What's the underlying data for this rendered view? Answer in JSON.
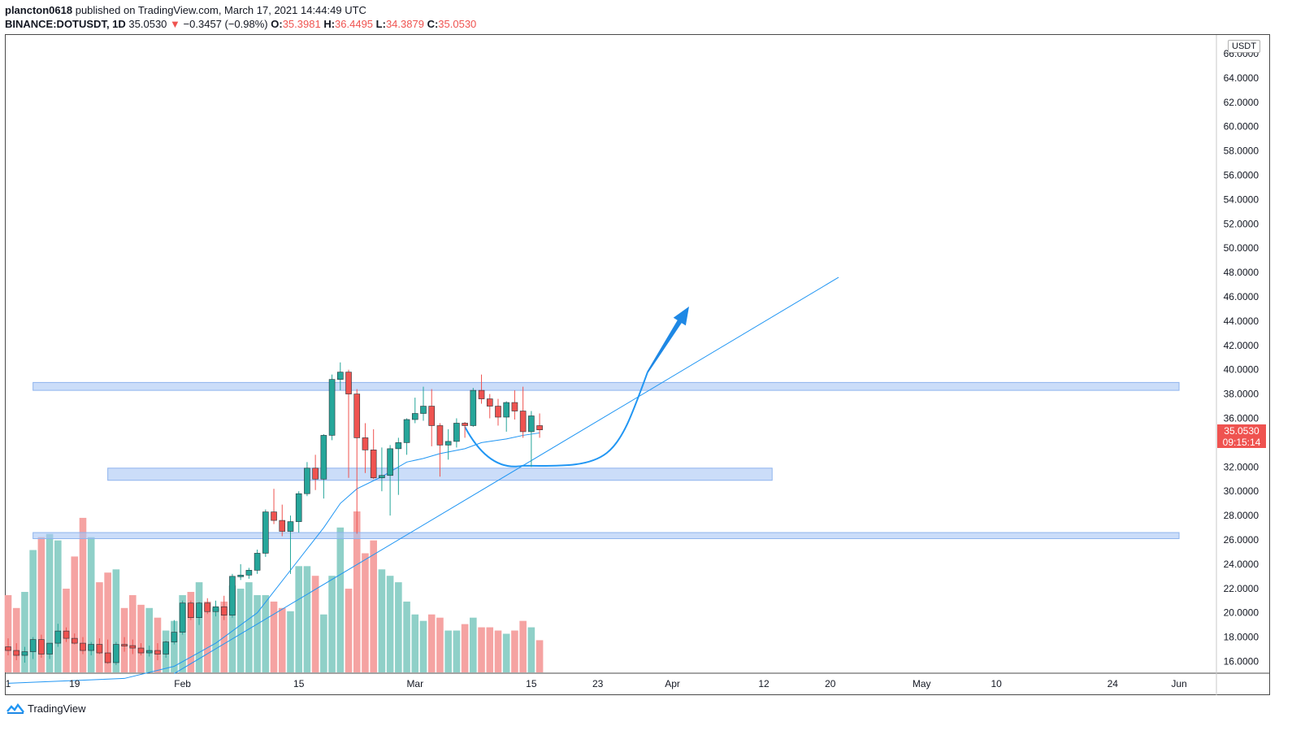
{
  "header": {
    "author": "plancton0618",
    "published_text": "published on TradingView.com, March 17, 2021 14:44:49 UTC",
    "symbol": "BINANCE:DOTUSDT, 1D",
    "last": "35.0530",
    "change_arrow": "▼",
    "change": "−0.3457 (−0.98%)",
    "o_label": "O:",
    "o": "35.3981",
    "h_label": "H:",
    "h": "36.4495",
    "l_label": "L:",
    "l": "34.3879",
    "c_label": "C:",
    "c": "35.0530"
  },
  "currency": "USDT",
  "price_tag": {
    "value": "35.0530",
    "countdown": "09:15:14"
  },
  "footer": {
    "brand": "TradingView"
  },
  "colors": {
    "up": "#26a69a",
    "down": "#ef5350",
    "zone": "#a9c6f5",
    "trend": "#2196f3"
  },
  "chart_data": {
    "type": "candlestick",
    "title": "BINANCE:DOTUSDT, 1D",
    "ylim": [
      15,
      67
    ],
    "y_ticks": [
      "16.0000",
      "18.0000",
      "20.0000",
      "22.0000",
      "24.0000",
      "26.0000",
      "28.0000",
      "30.0000",
      "32.0000",
      "34.0000",
      "36.0000",
      "38.0000",
      "40.0000",
      "42.0000",
      "44.0000",
      "46.0000",
      "48.0000",
      "50.0000",
      "52.0000",
      "54.0000",
      "56.0000",
      "58.0000",
      "60.0000",
      "62.0000",
      "64.0000",
      "66.0000"
    ],
    "x_ticks": [
      {
        "label": "1",
        "day": 0
      },
      {
        "label": "19",
        "day": 8
      },
      {
        "label": "Feb",
        "day": 21
      },
      {
        "label": "15",
        "day": 35
      },
      {
        "label": "Mar",
        "day": 49
      },
      {
        "label": "15",
        "day": 63
      },
      {
        "label": "23",
        "day": 71
      },
      {
        "label": "Apr",
        "day": 80
      },
      {
        "label": "12",
        "day": 91
      },
      {
        "label": "20",
        "day": 99
      },
      {
        "label": "May",
        "day": 110
      },
      {
        "label": "10",
        "day": 119
      },
      {
        "label": "24",
        "day": 133
      },
      {
        "label": "Jun",
        "day": 141
      }
    ],
    "candles": [
      {
        "o": 17.2,
        "h": 17.9,
        "l": 16.5,
        "c": 16.9
      },
      {
        "o": 16.9,
        "h": 17.5,
        "l": 16.1,
        "c": 16.5
      },
      {
        "o": 16.5,
        "h": 17.2,
        "l": 15.9,
        "c": 16.8
      },
      {
        "o": 16.8,
        "h": 18.0,
        "l": 16.2,
        "c": 17.8
      },
      {
        "o": 17.8,
        "h": 18.2,
        "l": 16.3,
        "c": 16.6
      },
      {
        "o": 16.6,
        "h": 17.3,
        "l": 16.2,
        "c": 17.5
      },
      {
        "o": 17.5,
        "h": 19.1,
        "l": 17.2,
        "c": 18.5
      },
      {
        "o": 18.5,
        "h": 18.8,
        "l": 17.6,
        "c": 17.9
      },
      {
        "o": 17.9,
        "h": 18.3,
        "l": 17.4,
        "c": 17.5
      },
      {
        "o": 17.5,
        "h": 18.0,
        "l": 16.6,
        "c": 16.9
      },
      {
        "o": 16.9,
        "h": 17.6,
        "l": 16.5,
        "c": 17.4
      },
      {
        "o": 17.4,
        "h": 17.9,
        "l": 16.6,
        "c": 16.7
      },
      {
        "o": 16.7,
        "h": 17.8,
        "l": 15.8,
        "c": 15.9
      },
      {
        "o": 15.9,
        "h": 17.6,
        "l": 15.7,
        "c": 17.4
      },
      {
        "o": 17.4,
        "h": 18.0,
        "l": 16.8,
        "c": 17.3
      },
      {
        "o": 17.3,
        "h": 17.8,
        "l": 16.6,
        "c": 17.1
      },
      {
        "o": 17.1,
        "h": 17.5,
        "l": 16.5,
        "c": 16.7
      },
      {
        "o": 16.7,
        "h": 17.3,
        "l": 16.4,
        "c": 16.9
      },
      {
        "o": 16.9,
        "h": 17.5,
        "l": 16.1,
        "c": 16.6
      },
      {
        "o": 16.6,
        "h": 17.7,
        "l": 16.3,
        "c": 17.6
      },
      {
        "o": 17.6,
        "h": 19.4,
        "l": 17.4,
        "c": 18.4
      },
      {
        "o": 18.4,
        "h": 21.0,
        "l": 18.2,
        "c": 20.8
      },
      {
        "o": 20.8,
        "h": 21.0,
        "l": 19.4,
        "c": 19.6
      },
      {
        "o": 19.6,
        "h": 20.9,
        "l": 19.0,
        "c": 20.8
      },
      {
        "o": 20.8,
        "h": 21.2,
        "l": 19.9,
        "c": 20.1
      },
      {
        "o": 20.1,
        "h": 21.0,
        "l": 19.7,
        "c": 20.5
      },
      {
        "o": 20.5,
        "h": 21.4,
        "l": 19.4,
        "c": 19.8
      },
      {
        "o": 19.8,
        "h": 23.2,
        "l": 19.6,
        "c": 23.0
      },
      {
        "o": 23.0,
        "h": 24.0,
        "l": 22.7,
        "c": 23.1
      },
      {
        "o": 23.1,
        "h": 23.7,
        "l": 22.8,
        "c": 23.5
      },
      {
        "o": 23.5,
        "h": 25.2,
        "l": 23.2,
        "c": 24.9
      },
      {
        "o": 24.9,
        "h": 28.5,
        "l": 24.6,
        "c": 28.3
      },
      {
        "o": 28.3,
        "h": 30.2,
        "l": 27.3,
        "c": 27.6
      },
      {
        "o": 27.6,
        "h": 28.9,
        "l": 26.3,
        "c": 26.7
      },
      {
        "o": 26.7,
        "h": 28.0,
        "l": 23.2,
        "c": 27.5
      },
      {
        "o": 27.5,
        "h": 30.0,
        "l": 26.6,
        "c": 29.8
      },
      {
        "o": 29.8,
        "h": 32.4,
        "l": 29.6,
        "c": 31.9
      },
      {
        "o": 31.9,
        "h": 33.0,
        "l": 30.1,
        "c": 31.0
      },
      {
        "o": 31.0,
        "h": 34.7,
        "l": 29.4,
        "c": 34.6
      },
      {
        "o": 34.6,
        "h": 39.6,
        "l": 34.2,
        "c": 39.2
      },
      {
        "o": 39.2,
        "h": 40.6,
        "l": 38.3,
        "c": 39.8
      },
      {
        "o": 39.8,
        "h": 40.0,
        "l": 31.1,
        "c": 38.0
      },
      {
        "o": 38.0,
        "h": 38.4,
        "l": 26.5,
        "c": 34.4
      },
      {
        "o": 34.4,
        "h": 35.6,
        "l": 31.5,
        "c": 33.4
      },
      {
        "o": 33.4,
        "h": 35.1,
        "l": 31.0,
        "c": 31.1
      },
      {
        "o": 31.1,
        "h": 33.6,
        "l": 30.0,
        "c": 31.3
      },
      {
        "o": 31.3,
        "h": 33.8,
        "l": 28.0,
        "c": 33.5
      },
      {
        "o": 33.5,
        "h": 34.4,
        "l": 29.7,
        "c": 34.0
      },
      {
        "o": 34.0,
        "h": 36.0,
        "l": 33.0,
        "c": 35.9
      },
      {
        "o": 35.9,
        "h": 37.7,
        "l": 35.6,
        "c": 36.4
      },
      {
        "o": 36.4,
        "h": 38.6,
        "l": 35.8,
        "c": 37.0
      },
      {
        "o": 37.0,
        "h": 38.4,
        "l": 33.7,
        "c": 35.4
      },
      {
        "o": 35.4,
        "h": 35.6,
        "l": 31.2,
        "c": 33.8
      },
      {
        "o": 33.8,
        "h": 35.1,
        "l": 32.6,
        "c": 34.1
      },
      {
        "o": 34.1,
        "h": 36.0,
        "l": 33.6,
        "c": 35.6
      },
      {
        "o": 35.6,
        "h": 35.7,
        "l": 34.4,
        "c": 35.4
      },
      {
        "o": 35.4,
        "h": 38.5,
        "l": 35.3,
        "c": 38.3
      },
      {
        "o": 38.3,
        "h": 39.6,
        "l": 37.2,
        "c": 37.6
      },
      {
        "o": 37.6,
        "h": 38.0,
        "l": 36.0,
        "c": 37.0
      },
      {
        "o": 37.0,
        "h": 37.6,
        "l": 35.4,
        "c": 36.1
      },
      {
        "o": 36.1,
        "h": 37.4,
        "l": 34.9,
        "c": 37.3
      },
      {
        "o": 37.3,
        "h": 38.3,
        "l": 35.9,
        "c": 36.6
      },
      {
        "o": 36.6,
        "h": 38.6,
        "l": 34.4,
        "c": 34.9
      },
      {
        "o": 34.9,
        "h": 36.6,
        "l": 32.0,
        "c": 36.2
      },
      {
        "o": 35.4,
        "h": 36.4,
        "l": 34.4,
        "c": 35.05
      }
    ],
    "volume": [
      24,
      20,
      25,
      38,
      42,
      43,
      41,
      26,
      36,
      48,
      42,
      28,
      31,
      32,
      20,
      24,
      21,
      20,
      17,
      13,
      16,
      24,
      25,
      28,
      22,
      20,
      22,
      27,
      26,
      28,
      24,
      24,
      22,
      20,
      19,
      33,
      33,
      30,
      18,
      30,
      45,
      26,
      50,
      37,
      41,
      32,
      30,
      28,
      22,
      18,
      16,
      18,
      17,
      13,
      13,
      15,
      17,
      14,
      14,
      13,
      12,
      13,
      16,
      14,
      10
    ],
    "ma": [
      [
        0,
        14.2
      ],
      [
        14,
        14.6
      ],
      [
        20,
        15.6
      ],
      [
        25,
        17.5
      ],
      [
        30,
        20.0
      ],
      [
        34,
        23.5
      ],
      [
        38,
        27.0
      ],
      [
        40,
        29.0
      ],
      [
        42,
        30.2
      ],
      [
        45,
        31.2
      ],
      [
        48,
        32.4
      ],
      [
        50,
        32.7
      ],
      [
        52,
        33.1
      ],
      [
        55,
        33.5
      ],
      [
        57,
        34.0
      ],
      [
        60,
        34.3
      ],
      [
        62,
        34.6
      ],
      [
        64,
        34.8
      ]
    ],
    "zones": [
      {
        "from_day": 3,
        "to_day": 141,
        "low": 38.3,
        "high": 38.95
      },
      {
        "from_day": 12,
        "to_day": 92,
        "low": 30.9,
        "high": 31.9
      },
      {
        "from_day": 3,
        "to_day": 141,
        "low": 26.1,
        "high": 26.6
      }
    ],
    "trendline": [
      [
        20,
        15.0
      ],
      [
        100,
        47.6
      ]
    ],
    "projection": {
      "start": [
        55,
        35.3
      ],
      "bottom": [
        62,
        32.1
      ],
      "end": [
        77,
        39.8
      ],
      "arrow_tip": [
        82,
        45.2
      ]
    }
  }
}
